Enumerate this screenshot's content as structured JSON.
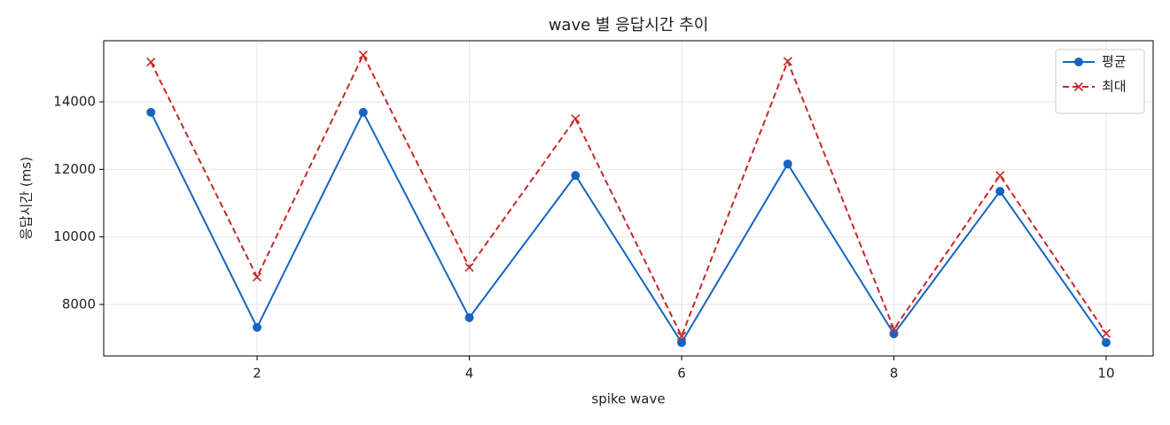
{
  "chart_data": {
    "type": "line",
    "title": "wave 별 응답시간 추이",
    "x_label": "spike wave",
    "y_label": "응답시간 (ms)",
    "x": [
      1,
      2,
      3,
      4,
      5,
      6,
      7,
      8,
      9,
      10
    ],
    "series": [
      {
        "name": "평균",
        "color": "#1565c0",
        "marker": "circle",
        "dash": "solid",
        "values": [
          13690,
          7320,
          13690,
          7610,
          11820,
          6870,
          12160,
          7130,
          11350,
          6870
        ]
      },
      {
        "name": "최대",
        "color": "#c62828",
        "marker": "cross",
        "dash": "dashed",
        "values": [
          15180,
          8810,
          15390,
          9100,
          13500,
          7060,
          15200,
          7270,
          11820,
          7140
        ]
      }
    ],
    "xlim": [
      0.555,
      10.443
    ],
    "ylim": [
      6475,
      15810
    ],
    "xticks": [
      2,
      4,
      6,
      8,
      10
    ],
    "yticks": [
      8000,
      10000,
      12000,
      14000
    ],
    "grid": true,
    "legend": "upper-right"
  }
}
